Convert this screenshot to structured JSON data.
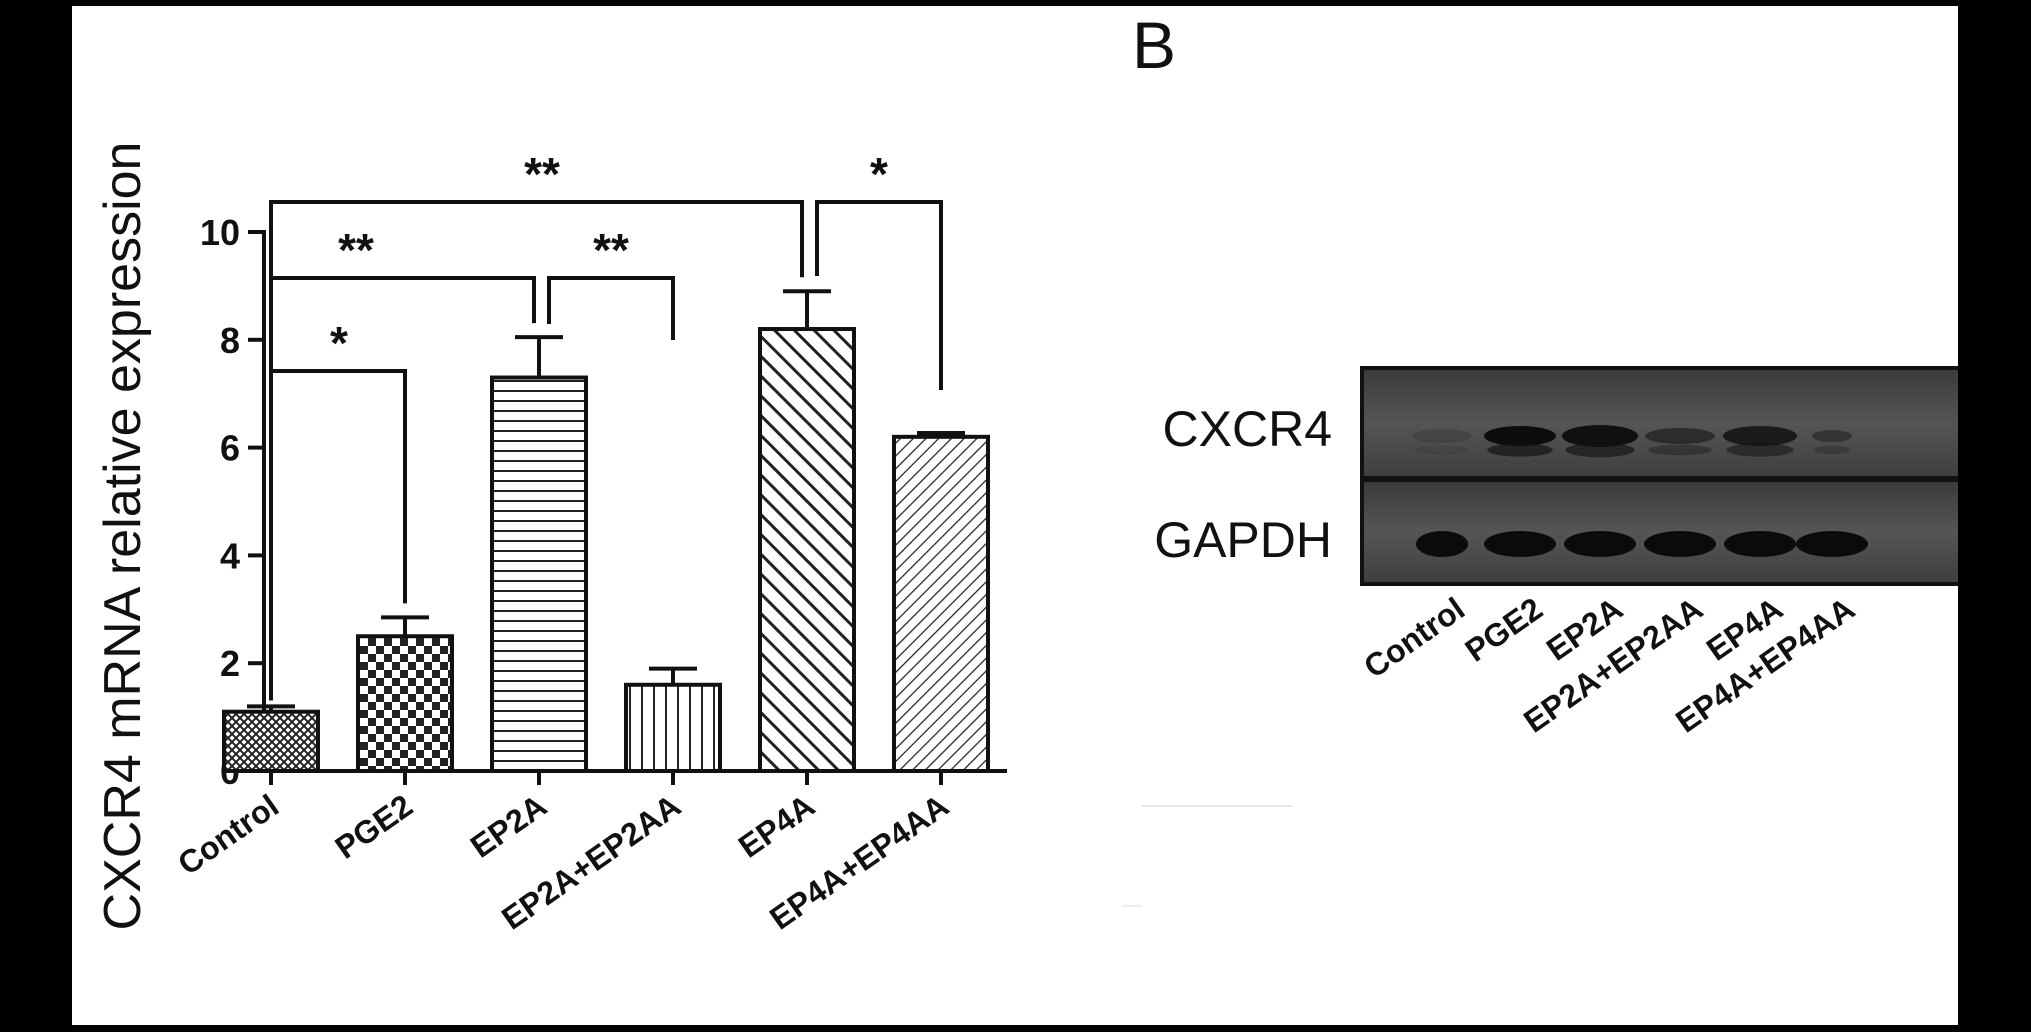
{
  "panel_label": "B",
  "chart_data": {
    "type": "bar",
    "ylabel": "CXCR4 mRNA relative expression",
    "ylim": [
      0,
      10
    ],
    "yticks": [
      "0",
      "2",
      "4",
      "6",
      "8",
      "10"
    ],
    "categories": [
      "Control",
      "PGE2",
      "EP2A",
      "EP2A+EP2AA",
      "EP4A",
      "EP4A+EP4AA"
    ],
    "values": [
      1.1,
      2.5,
      7.3,
      1.6,
      8.2,
      6.2
    ],
    "errors": [
      0.1,
      0.35,
      0.75,
      0.3,
      0.7,
      0.07
    ],
    "patterns": [
      "crosshatch",
      "checker",
      "horizontal",
      "vertical",
      "diag-wide",
      "diag-narrow"
    ],
    "significance": [
      {
        "from": "Control",
        "to": "PGE2",
        "label": "*"
      },
      {
        "from": "Control",
        "to": "EP2A",
        "label": "**"
      },
      {
        "from": "EP2A",
        "to": "EP2A+EP2AA",
        "label": "**"
      },
      {
        "from": "Control",
        "to": "EP4A",
        "label": "**"
      },
      {
        "from": "EP4A",
        "to": "EP4A+EP4AA",
        "label": "*"
      }
    ],
    "grid": false,
    "legend": "none"
  },
  "blot": {
    "rows": [
      "CXCR4",
      "GAPDH"
    ],
    "lanes": [
      "Control",
      "PGE2",
      "EP2A",
      "EP2A+EP2AA",
      "EP4A",
      "EP4A+EP4AA"
    ]
  }
}
